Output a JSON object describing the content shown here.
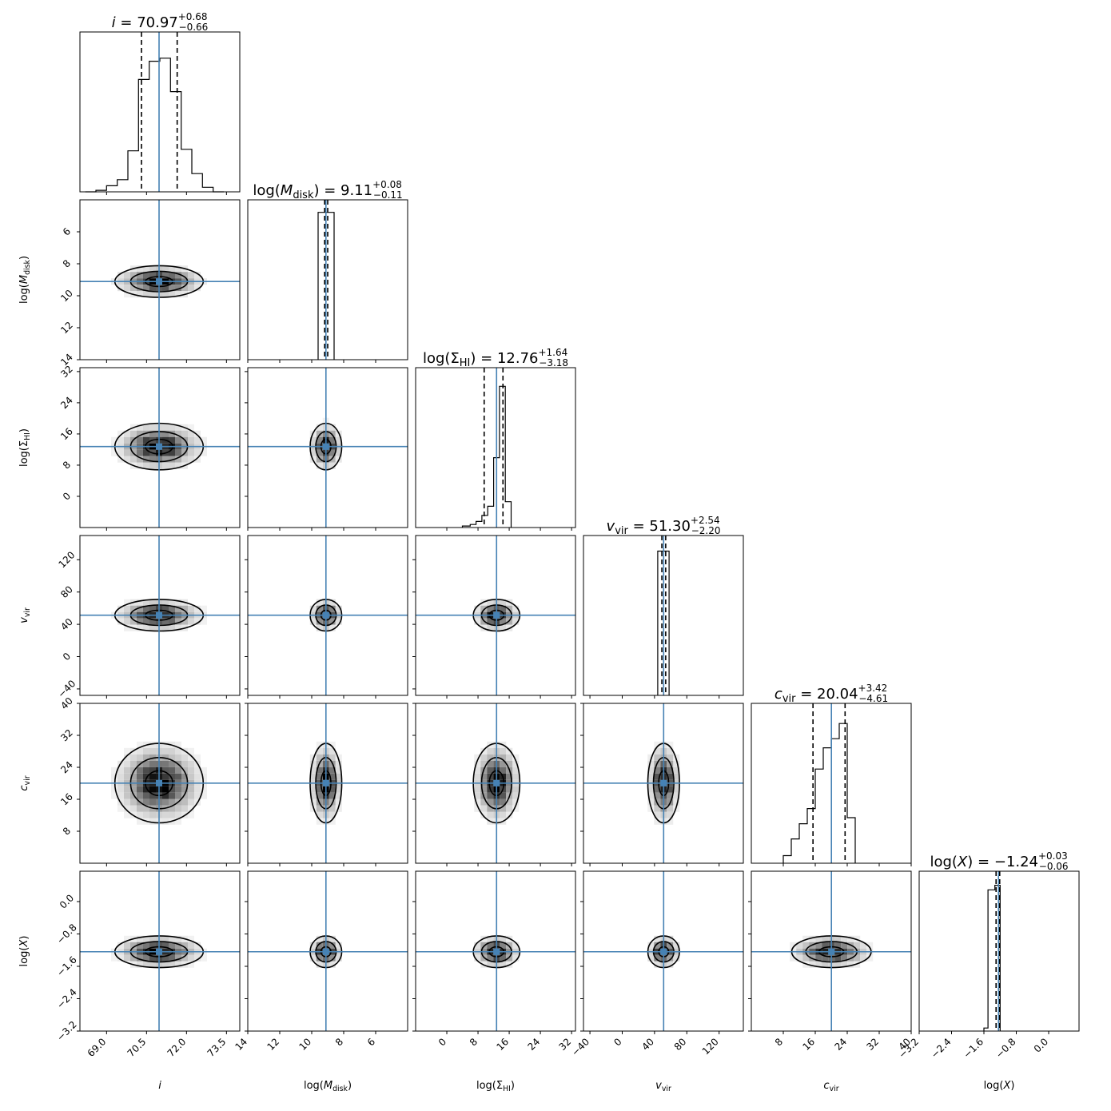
{
  "chart_data": {
    "type": "corner",
    "parameters": [
      {
        "id": "i",
        "label": "i",
        "range": [
          68.0,
          74.0
        ],
        "ticks": [
          69.0,
          70.5,
          72.0,
          73.5
        ],
        "tick_labels": [
          "69.0",
          "70.5",
          "72.0",
          "73.5"
        ],
        "median": 70.97,
        "lo": 70.31,
        "hi": 71.65,
        "inverted": false,
        "title": {
          "name": "i",
          "value": "70.97",
          "plus": "+0.68",
          "minus": "−0.66"
        }
      },
      {
        "id": "mdisk",
        "label": "log(M_disk)",
        "range": [
          14.0,
          4.0
        ],
        "ticks": [
          14,
          12,
          10,
          8,
          6
        ],
        "tick_labels": [
          "14",
          "12",
          "10",
          "8",
          "6"
        ],
        "median": 9.11,
        "lo": 9.0,
        "hi": 9.19,
        "inverted": true,
        "title": {
          "name": "log(M_disk)",
          "value": "9.11",
          "plus": "+0.08",
          "minus": "−0.11"
        }
      },
      {
        "id": "sigma",
        "label": "log(Σ_HI)",
        "range": [
          -8.0,
          33.0
        ],
        "ticks": [
          0,
          8,
          16,
          24,
          32
        ],
        "tick_labels": [
          "0",
          "8",
          "16",
          "24",
          "32"
        ],
        "median": 12.76,
        "lo": 9.58,
        "hi": 14.4,
        "inverted": false,
        "title": {
          "name": "log(Σ_HI)",
          "value": "12.76",
          "plus": "+1.64",
          "minus": "−3.18"
        }
      },
      {
        "id": "vvir",
        "label": "v_vir",
        "range": [
          -48.0,
          150.0
        ],
        "ticks": [
          -40,
          0,
          40,
          80,
          120
        ],
        "tick_labels": [
          "−40",
          "0",
          "40",
          "80",
          "120"
        ],
        "median": 51.3,
        "lo": 49.1,
        "hi": 53.84,
        "inverted": false,
        "title": {
          "name": "v_vir",
          "value": "51.30",
          "plus": "+2.54",
          "minus": "−2.20"
        }
      },
      {
        "id": "cvir",
        "label": "c_vir",
        "range": [
          0.0,
          40.0
        ],
        "ticks": [
          8,
          16,
          24,
          32,
          40
        ],
        "tick_labels": [
          "8",
          "16",
          "24",
          "32",
          "40"
        ],
        "median": 20.04,
        "lo": 15.43,
        "hi": 23.46,
        "inverted": false,
        "title": {
          "name": "c_vir",
          "value": "20.04",
          "plus": "+3.42",
          "minus": "−4.61"
        }
      },
      {
        "id": "logx",
        "label": "log(X)",
        "range": [
          -3.2,
          0.75
        ],
        "ticks": [
          -3.2,
          -2.4,
          -1.6,
          -0.8,
          0.0
        ],
        "tick_labels": [
          "−3.2",
          "−2.4",
          "−1.6",
          "−0.8",
          "0.0"
        ],
        "median": -1.24,
        "lo": -1.3,
        "hi": -1.21,
        "inverted": false,
        "title": {
          "name": "log(X)",
          "value": "−1.24",
          "plus": "+0.03",
          "minus": "−0.06"
        }
      }
    ],
    "histograms": [
      {
        "bins": [
          [
            68.2,
            68.6,
            0.0
          ],
          [
            68.6,
            69.0,
            0.01
          ],
          [
            69.0,
            69.4,
            0.04
          ],
          [
            69.4,
            69.8,
            0.08
          ],
          [
            69.8,
            70.2,
            0.27
          ],
          [
            70.2,
            70.6,
            0.74
          ],
          [
            70.6,
            71.0,
            0.86
          ],
          [
            71.0,
            71.4,
            0.88
          ],
          [
            71.4,
            71.8,
            0.66
          ],
          [
            71.8,
            72.2,
            0.28
          ],
          [
            72.2,
            72.6,
            0.12
          ],
          [
            72.6,
            73.0,
            0.03
          ],
          [
            73.0,
            73.4,
            0.0
          ]
        ]
      },
      {
        "bins": [
          [
            9.6,
            9.1,
            0.97
          ],
          [
            9.1,
            8.6,
            0.97
          ]
        ]
      },
      {
        "bins": [
          [
            4.0,
            6.0,
            0.01
          ],
          [
            6.0,
            7.5,
            0.02
          ],
          [
            7.5,
            9.0,
            0.04
          ],
          [
            9.0,
            10.5,
            0.08
          ],
          [
            10.5,
            12.0,
            0.14
          ],
          [
            12.0,
            13.5,
            0.46
          ],
          [
            13.5,
            15.0,
            0.93
          ],
          [
            15.0,
            16.5,
            0.17
          ]
        ]
      },
      {
        "bins": [
          [
            44,
            51,
            0.95
          ],
          [
            51,
            58,
            0.95
          ]
        ]
      },
      {
        "bins": [
          [
            8,
            10,
            0.05
          ],
          [
            10,
            12,
            0.16
          ],
          [
            12,
            14,
            0.26
          ],
          [
            14,
            16,
            0.36
          ],
          [
            16,
            18,
            0.62
          ],
          [
            18,
            20,
            0.76
          ],
          [
            20,
            22,
            0.82
          ],
          [
            22,
            24,
            0.92
          ],
          [
            24,
            26,
            0.3
          ]
        ]
      },
      {
        "bins": [
          [
            -1.6,
            -1.5,
            0.02
          ],
          [
            -1.5,
            -1.33,
            0.93
          ],
          [
            -1.33,
            -1.2,
            0.96
          ]
        ]
      }
    ],
    "contour_levels": 3,
    "truth_line_color": "#4682b4",
    "quantile_line_style": "dashed"
  }
}
